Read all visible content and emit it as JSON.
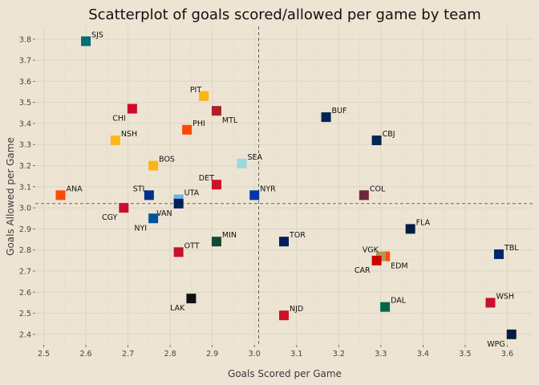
{
  "chart_data": {
    "type": "scatter",
    "title": "Scatterplot of goals scored/allowed per game by team",
    "xlabel": "Goals Scored per Game",
    "ylabel": "Goals Allowed per Game",
    "xlim": [
      2.48,
      3.66
    ],
    "ylim": [
      2.35,
      3.86
    ],
    "xticks": [
      "2.5",
      "2.6",
      "2.7",
      "2.8",
      "2.9",
      "3.0",
      "3.1",
      "3.2",
      "3.3",
      "3.4",
      "3.5",
      "3.6"
    ],
    "yticks": [
      "2.4",
      "2.5",
      "2.6",
      "2.7",
      "2.8",
      "2.9",
      "3.0",
      "3.1",
      "3.2",
      "3.3",
      "3.4",
      "3.5",
      "3.6",
      "3.7",
      "3.8"
    ],
    "grid": true,
    "ref_x": 3.01,
    "ref_y": 3.02,
    "points": [
      {
        "label": "SJS",
        "x": 2.6,
        "y": 3.79,
        "color": "#006d75",
        "pos": "ur"
      },
      {
        "label": "PIT",
        "x": 2.88,
        "y": 3.53,
        "color": "#fcb514",
        "pos": "ul"
      },
      {
        "label": "CHI",
        "x": 2.71,
        "y": 3.47,
        "color": "#cf0a2c",
        "pos": "ll"
      },
      {
        "label": "MTL",
        "x": 2.91,
        "y": 3.46,
        "color": "#af1e2d",
        "pos": "lr"
      },
      {
        "label": "BUF",
        "x": 3.17,
        "y": 3.43,
        "color": "#002654",
        "pos": "ur"
      },
      {
        "label": "PHI",
        "x": 2.84,
        "y": 3.37,
        "color": "#f74902",
        "pos": "ur"
      },
      {
        "label": "NSH",
        "x": 2.67,
        "y": 3.32,
        "color": "#ffb81c",
        "pos": "ur"
      },
      {
        "label": "CBJ",
        "x": 3.29,
        "y": 3.32,
        "color": "#002654",
        "pos": "ur"
      },
      {
        "label": "SEA",
        "x": 2.97,
        "y": 3.21,
        "color": "#99d9d9",
        "pos": "ur"
      },
      {
        "label": "BOS",
        "x": 2.76,
        "y": 3.2,
        "color": "#fcb514",
        "pos": "ur"
      },
      {
        "label": "DET",
        "x": 2.91,
        "y": 3.11,
        "color": "#ce1126",
        "pos": "ul"
      },
      {
        "label": "ANA",
        "x": 2.54,
        "y": 3.06,
        "color": "#fc4c02",
        "pos": "ur"
      },
      {
        "label": "STL",
        "x": 2.75,
        "y": 3.06,
        "color": "#002f87",
        "pos": "ul"
      },
      {
        "label": "NYR",
        "x": 3.0,
        "y": 3.06,
        "color": "#0038a8",
        "pos": "ur"
      },
      {
        "label": "COL",
        "x": 3.26,
        "y": 3.06,
        "color": "#6f263d",
        "pos": "ur"
      },
      {
        "label": "UTA",
        "x": 2.82,
        "y": 3.04,
        "color": "#69b3e7",
        "pos": "ur"
      },
      {
        "label": "CGY",
        "x": 2.69,
        "y": 3.0,
        "color": "#c8102e",
        "pos": "ll"
      },
      {
        "label": "NYI",
        "x": 2.76,
        "y": 2.95,
        "color": "#00539b",
        "pos": "ll"
      },
      {
        "label": "VAN",
        "x": 2.82,
        "y": 3.02,
        "color": "#001f5b",
        "pos": "ll"
      },
      {
        "label": "FLA",
        "x": 3.37,
        "y": 2.9,
        "color": "#041e42",
        "pos": "ur"
      },
      {
        "label": "MIN",
        "x": 2.91,
        "y": 2.84,
        "color": "#154734",
        "pos": "ur"
      },
      {
        "label": "TOR",
        "x": 3.07,
        "y": 2.84,
        "color": "#00205b",
        "pos": "ur"
      },
      {
        "label": "OTT",
        "x": 2.82,
        "y": 2.79,
        "color": "#c8102e",
        "pos": "ur"
      },
      {
        "label": "TBL",
        "x": 3.58,
        "y": 2.78,
        "color": "#002868",
        "pos": "ur"
      },
      {
        "label": "EDM",
        "x": 3.31,
        "y": 2.77,
        "color": "#ff4c00",
        "pos": "lr"
      },
      {
        "label": "VGK",
        "x": 3.3,
        "y": 2.77,
        "color": "#b4975a",
        "pos": "ul"
      },
      {
        "label": "CAR",
        "x": 3.29,
        "y": 2.75,
        "color": "#cc0000",
        "pos": "ll"
      },
      {
        "label": "LAK",
        "x": 2.85,
        "y": 2.57,
        "color": "#111111",
        "pos": "ll"
      },
      {
        "label": "WSH",
        "x": 3.56,
        "y": 2.55,
        "color": "#c8102e",
        "pos": "ur"
      },
      {
        "label": "DAL",
        "x": 3.31,
        "y": 2.53,
        "color": "#006847",
        "pos": "ur"
      },
      {
        "label": "NJD",
        "x": 3.07,
        "y": 2.49,
        "color": "#ce1126",
        "pos": "ur"
      },
      {
        "label": "WPG",
        "x": 3.61,
        "y": 2.4,
        "color": "#041e42",
        "pos": "ll"
      }
    ]
  }
}
